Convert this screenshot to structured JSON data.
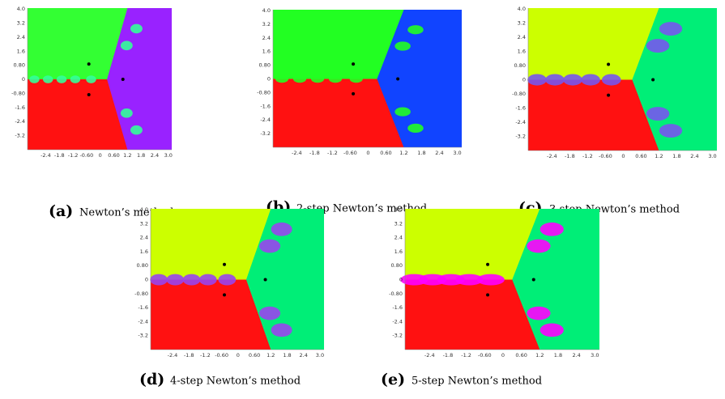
{
  "figure": {
    "y_tick_labels": [
      "4.0",
      "3.2",
      "2.4",
      "1.6",
      "0.80",
      "0",
      "-0.80",
      "-1.6",
      "-2.4",
      "-3.2"
    ],
    "x_tick_labels": [
      "-2.4",
      "-1.8",
      "-1.2",
      "-0.60",
      "0",
      "0.60",
      "1.2",
      "1.8",
      "2.4",
      "3.0"
    ],
    "panels": [
      {
        "label": "(a)",
        "caption": "Newton’s method"
      },
      {
        "label": "(b)",
        "caption": "2-step Newton’s method"
      },
      {
        "label": "(c)",
        "caption": "3-step Newton’s method"
      },
      {
        "label": "(d)",
        "caption": "4-step Newton’s method"
      },
      {
        "label": "(e)",
        "caption": "5-step Newton’s method"
      }
    ]
  }
}
